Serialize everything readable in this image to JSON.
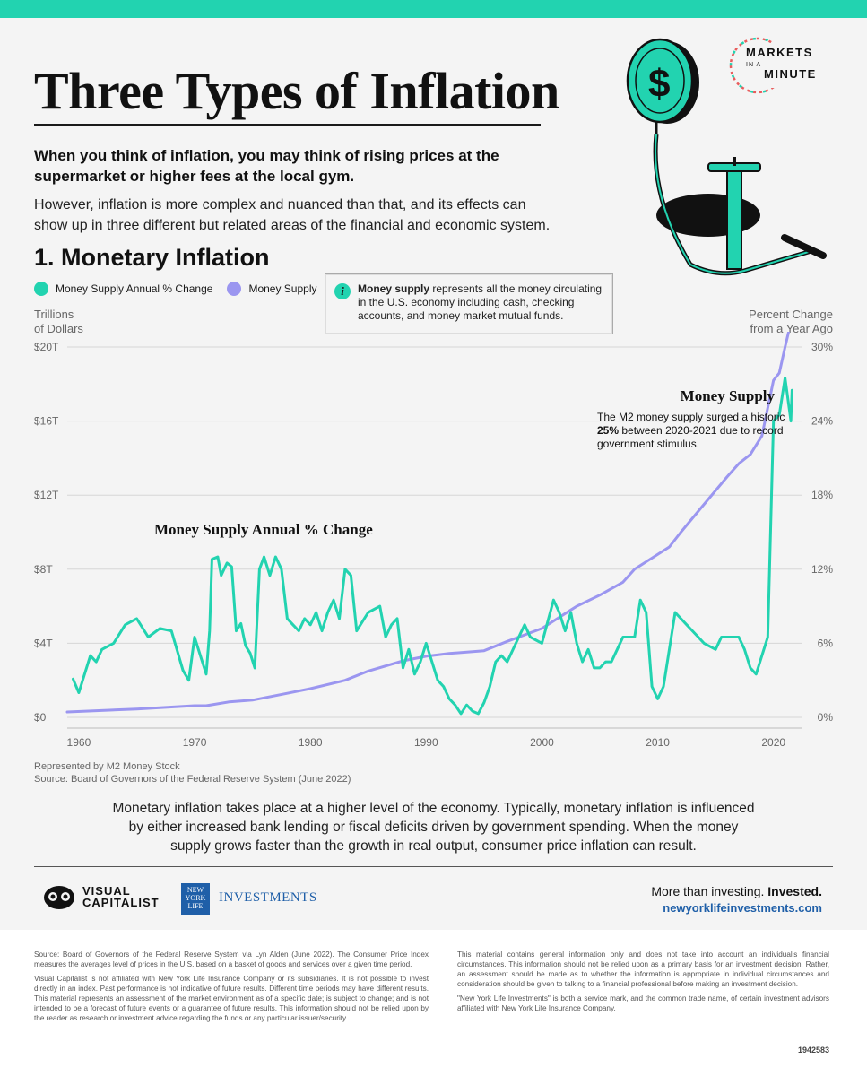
{
  "header": {
    "title": "Three Types of Inflation",
    "intro_bold": "When you think of inflation, you may think of rising prices at the supermarket or higher fees at the local gym.",
    "intro": "However, inflation is more complex and nuanced than that, and its effects can show up in three different but related areas of the financial and economic system.",
    "brand_line1": "MARKETS",
    "brand_small": "IN A",
    "brand_line2": "MINUTE"
  },
  "section": {
    "title": "1. Monetary Inflation"
  },
  "legend": {
    "annual_change": "Money Supply Annual % Change",
    "money_supply": "Money Supply"
  },
  "infobox": {
    "icon": "i",
    "term": "Money supply",
    "text": " represents all the money circulating in the U.S. economy including cash, checking accounts, and money market mutual funds."
  },
  "axes": {
    "left_title_1": "Trillions",
    "left_title_2": "of Dollars",
    "right_title_1": "Percent Change",
    "right_title_2": "from a Year Ago"
  },
  "chart_data": {
    "type": "line",
    "x_ticks": [
      "1960",
      "1970",
      "1980",
      "1990",
      "2000",
      "2010",
      "2020"
    ],
    "left_ticks": [
      "$0",
      "$4T",
      "$8T",
      "$12T",
      "$16T",
      "$20T"
    ],
    "right_ticks": [
      "0%",
      "6%",
      "12%",
      "18%",
      "24%",
      "30%"
    ],
    "left_range": [
      0,
      20
    ],
    "right_range": [
      0,
      30
    ],
    "x_range": [
      1959,
      2022.5
    ],
    "annotation_money_supply_title": "Money Supply",
    "annotation_money_supply_pre": "The M2 money supply surged a historic ",
    "annotation_money_supply_bold": "25%",
    "annotation_money_supply_post": " between 2020-2021 due to record government stimulus.",
    "annotation_annual_title": "Money Supply Annual % Change",
    "colors": {
      "annual_change": "#22d3b0",
      "money_supply": "#9b96f0"
    },
    "series": [
      {
        "name": "Money Supply",
        "axis": "left",
        "points": [
          [
            1959,
            0.29
          ],
          [
            1965,
            0.45
          ],
          [
            1970,
            0.63
          ],
          [
            1971,
            0.63
          ],
          [
            1973,
            0.84
          ],
          [
            1975,
            0.93
          ],
          [
            1978,
            1.3
          ],
          [
            1980,
            1.55
          ],
          [
            1983,
            2.0
          ],
          [
            1985,
            2.5
          ],
          [
            1988,
            3.05
          ],
          [
            1990,
            3.3
          ],
          [
            1992,
            3.45
          ],
          [
            1995,
            3.6
          ],
          [
            1997,
            4.1
          ],
          [
            2000,
            4.8
          ],
          [
            2003,
            6.0
          ],
          [
            2005,
            6.6
          ],
          [
            2007,
            7.3
          ],
          [
            2008,
            8.0
          ],
          [
            2009,
            8.4
          ],
          [
            2011,
            9.2
          ],
          [
            2012,
            10.0
          ],
          [
            2014,
            11.5
          ],
          [
            2016,
            13.0
          ],
          [
            2017,
            13.7
          ],
          [
            2018,
            14.2
          ],
          [
            2019,
            15.2
          ],
          [
            2020,
            18.2
          ],
          [
            2020.5,
            18.6
          ],
          [
            2021,
            20.0
          ],
          [
            2021.6,
            21.6
          ]
        ]
      },
      {
        "name": "Money Supply Annual % Change",
        "axis": "right",
        "points": [
          [
            1959.5,
            3.1
          ],
          [
            1960,
            2.0
          ],
          [
            1961,
            5.0
          ],
          [
            1961.5,
            4.5
          ],
          [
            1962,
            5.5
          ],
          [
            1963,
            6.0
          ],
          [
            1964,
            7.5
          ],
          [
            1965,
            8.0
          ],
          [
            1966,
            6.5
          ],
          [
            1967,
            7.2
          ],
          [
            1968,
            7.0
          ],
          [
            1969,
            3.8
          ],
          [
            1969.5,
            3.0
          ],
          [
            1970,
            6.5
          ],
          [
            1970.5,
            5.0
          ],
          [
            1971,
            3.5
          ],
          [
            1971.3,
            7.0
          ],
          [
            1971.5,
            12.8
          ],
          [
            1972,
            13.0
          ],
          [
            1972.3,
            11.5
          ],
          [
            1972.8,
            12.5
          ],
          [
            1973.2,
            12.2
          ],
          [
            1973.6,
            7.0
          ],
          [
            1974,
            7.6
          ],
          [
            1974.4,
            5.8
          ],
          [
            1974.8,
            5.2
          ],
          [
            1975.2,
            4.0
          ],
          [
            1975.6,
            12.0
          ],
          [
            1976,
            13.0
          ],
          [
            1976.5,
            11.5
          ],
          [
            1977,
            13.0
          ],
          [
            1977.5,
            12.0
          ],
          [
            1978,
            8.0
          ],
          [
            1978.5,
            7.5
          ],
          [
            1979,
            7.0
          ],
          [
            1979.5,
            8.0
          ],
          [
            1980,
            7.5
          ],
          [
            1980.5,
            8.5
          ],
          [
            1981,
            7.0
          ],
          [
            1981.5,
            8.5
          ],
          [
            1982,
            9.5
          ],
          [
            1982.5,
            8.0
          ],
          [
            1983,
            12.0
          ],
          [
            1983.5,
            11.5
          ],
          [
            1984,
            7.0
          ],
          [
            1985,
            8.5
          ],
          [
            1986,
            9.0
          ],
          [
            1986.5,
            6.5
          ],
          [
            1987,
            7.5
          ],
          [
            1987.5,
            8.0
          ],
          [
            1988,
            4.0
          ],
          [
            1988.5,
            5.5
          ],
          [
            1989,
            3.5
          ],
          [
            1989.5,
            4.5
          ],
          [
            1990,
            6.0
          ],
          [
            1990.5,
            4.5
          ],
          [
            1991,
            3.0
          ],
          [
            1991.5,
            2.5
          ],
          [
            1992,
            1.5
          ],
          [
            1992.5,
            1.0
          ],
          [
            1993,
            0.3
          ],
          [
            1993.5,
            1.0
          ],
          [
            1994,
            0.5
          ],
          [
            1994.5,
            0.3
          ],
          [
            1995,
            1.2
          ],
          [
            1995.5,
            2.5
          ],
          [
            1996,
            4.5
          ],
          [
            1996.5,
            5.0
          ],
          [
            1997,
            4.5
          ],
          [
            1998,
            6.5
          ],
          [
            1998.5,
            7.5
          ],
          [
            1999,
            6.5
          ],
          [
            2000,
            6.0
          ],
          [
            2001,
            9.5
          ],
          [
            2001.5,
            8.5
          ],
          [
            2002,
            7.0
          ],
          [
            2002.5,
            8.5
          ],
          [
            2003,
            6.0
          ],
          [
            2003.5,
            4.5
          ],
          [
            2004,
            5.5
          ],
          [
            2004.5,
            4.0
          ],
          [
            2005,
            4.0
          ],
          [
            2005.5,
            4.5
          ],
          [
            2006,
            4.5
          ],
          [
            2006.5,
            5.5
          ],
          [
            2007,
            6.5
          ],
          [
            2008,
            6.5
          ],
          [
            2008.5,
            9.5
          ],
          [
            2009,
            8.5
          ],
          [
            2009.5,
            2.5
          ],
          [
            2010,
            1.5
          ],
          [
            2010.5,
            2.5
          ],
          [
            2011,
            5.5
          ],
          [
            2011.5,
            8.5
          ],
          [
            2012,
            8.0
          ],
          [
            2012.5,
            7.5
          ],
          [
            2013,
            7.0
          ],
          [
            2013.5,
            6.5
          ],
          [
            2014,
            6.0
          ],
          [
            2015,
            5.5
          ],
          [
            2015.5,
            6.5
          ],
          [
            2016,
            6.5
          ],
          [
            2017,
            6.5
          ],
          [
            2017.5,
            5.5
          ],
          [
            2018,
            4.0
          ],
          [
            2018.5,
            3.5
          ],
          [
            2019,
            5.0
          ],
          [
            2019.5,
            6.5
          ],
          [
            2020,
            24.0
          ],
          [
            2020.5,
            24.5
          ],
          [
            2021,
            27.5
          ],
          [
            2021.5,
            24.0
          ],
          [
            2021.6,
            26.5
          ]
        ]
      }
    ]
  },
  "notes": {
    "represented": "Represented by M2 Money Stock",
    "source": "Source: Board of Governors of the Federal Reserve System (June 2022)"
  },
  "description": "Monetary inflation takes place at a higher level of the economy. Typically, monetary inflation is influenced by either increased bank lending or fiscal deficits driven by government spending. When the money supply grows faster than the growth in real output, consumer price inflation can result.",
  "brands": {
    "vc_line1": "VISUAL",
    "vc_line2": "CAPITALIST",
    "nyl_box": "NEW YORK LIFE",
    "nyl_investments": "INVESTMENTS",
    "tagline_light": "More than investing. ",
    "tagline_bold": "Invested.",
    "url": "newyorklifeinvestments.com"
  },
  "footer": {
    "fine_left_1": "Source: Board of Governors of the Federal Reserve System via Lyn Alden (June 2022). The Consumer Price Index measures the averages level of prices in the U.S. based on a basket of goods and services over a given time period.",
    "fine_left_2": "Visual Capitalist is not affiliated with New York Life Insurance Company or its subsidiaries. It is not possible to invest directly in an index. Past performance is not indicative of future results. Different time periods may have different results. This material represents an assessment of the market environment as of a specific date; is subject to change; and is not intended to be a forecast of future events or a guarantee of future results. This information should not be relied upon by the reader as research or investment advice regarding the funds or any particular issuer/security.",
    "fine_right_1": "This material contains general information only and does not take into account an individual's financial circumstances. This information should not be relied upon as a primary basis for an investment decision. Rather, an assessment should be made as to whether the information is appropriate in individual circumstances and consideration should be given to talking to a financial professional before making an investment decision.",
    "fine_right_2": "\"New York Life Investments\" is both a service mark, and the common trade name, of certain investment advisors affiliated with New York Life Insurance Company.",
    "code": "1942583"
  }
}
